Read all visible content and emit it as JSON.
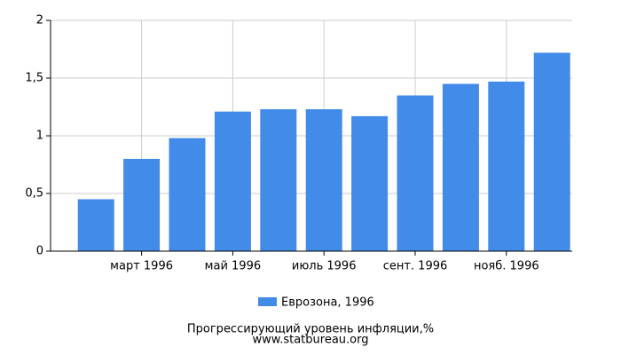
{
  "chart_data": {
    "type": "bar",
    "title": "Прогрессирующий уровень инфляции,%",
    "subtitle": "www.statbureau.org",
    "categories": [
      null,
      "март 1996",
      null,
      "май 1996",
      null,
      "июль 1996",
      null,
      "сент. 1996",
      null,
      "нояб. 1996",
      null
    ],
    "series": [
      {
        "name": "Еврозона, 1996",
        "color": "#428be8",
        "values": [
          0.45,
          0.8,
          0.98,
          1.21,
          1.23,
          1.23,
          1.17,
          1.35,
          1.45,
          1.47,
          1.72
        ]
      }
    ],
    "ylim": [
      0,
      2
    ],
    "yticks": [
      0,
      {
        "value": 0.5,
        "label": "0,5"
      },
      1,
      {
        "value": 1.5,
        "label": "1,5"
      },
      2
    ],
    "grid": true
  }
}
